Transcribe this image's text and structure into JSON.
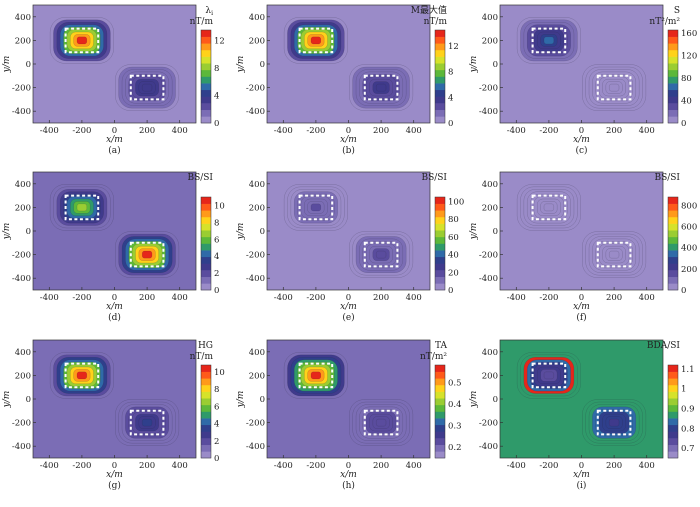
{
  "chart_data": [
    {
      "type": "heatmap",
      "panel_label": "(a)",
      "xlabel": "x/m",
      "ylabel": "y/m",
      "xlim": [
        -500,
        500
      ],
      "ylim": [
        -500,
        500
      ],
      "xticks": [
        "-400",
        "-200",
        "0",
        "200",
        "400"
      ],
      "yticks": [
        "400",
        "200",
        "0",
        "-200",
        "-400"
      ],
      "colorbar": {
        "title": "λ",
        "title_sub": "i",
        "unit": "nT/m",
        "ticks": [
          12,
          8,
          4,
          0
        ],
        "vmin": 0,
        "vmax": 13.5
      },
      "anomalies": [
        {
          "x": [
            -300,
            -100
          ],
          "y": [
            100,
            300
          ],
          "peak": 13.0
        },
        {
          "x": [
            100,
            300
          ],
          "y": [
            -300,
            -100
          ],
          "peak": 3.6
        }
      ],
      "background": 0.8,
      "marker": "rect"
    },
    {
      "type": "heatmap",
      "panel_label": "(b)",
      "xlabel": "x/m",
      "ylabel": "y/m",
      "xlim": [
        -500,
        500
      ],
      "ylim": [
        -500,
        500
      ],
      "xticks": [
        "-400",
        "-200",
        "0",
        "200",
        "400"
      ],
      "yticks": [
        "400",
        "200",
        "0",
        "-200",
        "-400"
      ],
      "colorbar": {
        "title": "M最大值",
        "unit": "nT/m",
        "ticks": [
          12,
          8,
          4,
          0
        ],
        "vmin": 0,
        "vmax": 14.5
      },
      "anomalies": [
        {
          "x": [
            -300,
            -100
          ],
          "y": [
            100,
            300
          ],
          "peak": 14.0
        },
        {
          "x": [
            100,
            300
          ],
          "y": [
            -300,
            -100
          ],
          "peak": 3.8
        }
      ],
      "background": 0.8,
      "marker": "rect"
    },
    {
      "type": "heatmap",
      "panel_label": "(c)",
      "xlabel": "x/m",
      "ylabel": "y/m",
      "xlim": [
        -500,
        500
      ],
      "ylim": [
        -500,
        500
      ],
      "xticks": [
        "-400",
        "-200",
        "0",
        "200",
        "400"
      ],
      "yticks": [
        "400",
        "200",
        "0",
        "-200",
        "-400"
      ],
      "colorbar": {
        "title": "S",
        "unit": "nT²/m²",
        "ticks": [
          160,
          120,
          80,
          40,
          0
        ],
        "vmin": 0,
        "vmax": 165
      },
      "anomalies": [
        {
          "x": [
            -300,
            -100
          ],
          "y": [
            100,
            300
          ],
          "peak": 60
        },
        {
          "x": [
            100,
            300
          ],
          "y": [
            -300,
            -100
          ],
          "peak": 8
        }
      ],
      "background": 6,
      "marker": "rect"
    },
    {
      "type": "heatmap",
      "panel_label": "(d)",
      "xlabel": "x/m",
      "ylabel": "y/m",
      "xlim": [
        -500,
        500
      ],
      "ylim": [
        -500,
        500
      ],
      "xticks": [
        "-400",
        "-200",
        "0",
        "200",
        "400"
      ],
      "yticks": [
        "400",
        "200",
        "0",
        "-200",
        "-400"
      ],
      "colorbar": {
        "title": "BS/SI",
        "unit": "",
        "ticks": [
          10,
          8,
          6,
          4,
          2,
          0
        ],
        "vmin": 0,
        "vmax": 11
      },
      "anomalies": [
        {
          "x": [
            -300,
            -100
          ],
          "y": [
            100,
            300
          ],
          "peak": 6.5
        },
        {
          "x": [
            100,
            300
          ],
          "y": [
            -300,
            -100
          ],
          "peak": 10.5
        }
      ],
      "background": 0.8,
      "marker": "rect"
    },
    {
      "type": "heatmap",
      "panel_label": "(e)",
      "xlabel": "x/m",
      "ylabel": "y/m",
      "xlim": [
        -500,
        500
      ],
      "ylim": [
        -500,
        500
      ],
      "xticks": [
        "-400",
        "-200",
        "0",
        "200",
        "400"
      ],
      "yticks": [
        "400",
        "200",
        "0",
        "-200",
        "-400"
      ],
      "colorbar": {
        "title": "BS/SI",
        "unit": "",
        "ticks": [
          100,
          80,
          60,
          40,
          20,
          0
        ],
        "vmin": 0,
        "vmax": 105
      },
      "anomalies": [
        {
          "x": [
            -300,
            -100
          ],
          "y": [
            100,
            300
          ],
          "peak": 15
        },
        {
          "x": [
            100,
            300
          ],
          "y": [
            -300,
            -100
          ],
          "peak": 18
        }
      ],
      "background": 4,
      "marker": "rect"
    },
    {
      "type": "heatmap",
      "panel_label": "(f)",
      "xlabel": "x/m",
      "ylabel": "y/m",
      "xlim": [
        -500,
        500
      ],
      "ylim": [
        -500,
        500
      ],
      "xticks": [
        "-400",
        "-200",
        "0",
        "200",
        "400"
      ],
      "yticks": [
        "400",
        "200",
        "0",
        "-200",
        "-400"
      ],
      "colorbar": {
        "title": "BS/SI",
        "unit": "",
        "ticks": [
          800,
          600,
          400,
          200,
          0
        ],
        "vmin": 0,
        "vmax": 880
      },
      "anomalies": [
        {
          "x": [
            -300,
            -100
          ],
          "y": [
            100,
            300
          ],
          "peak": 60
        },
        {
          "x": [
            100,
            300
          ],
          "y": [
            -300,
            -100
          ],
          "peak": 60
        }
      ],
      "background": 30,
      "marker": "rect"
    },
    {
      "type": "heatmap",
      "panel_label": "(g)",
      "xlabel": "x/m",
      "ylabel": "y/m",
      "xlim": [
        -500,
        500
      ],
      "ylim": [
        -500,
        500
      ],
      "xticks": [
        "-400",
        "-200",
        "0",
        "200",
        "400"
      ],
      "yticks": [
        "400",
        "200",
        "0",
        "-200",
        "-400"
      ],
      "colorbar": {
        "title": "HG",
        "unit": "nT/m",
        "ticks": [
          10,
          8,
          6,
          4,
          2,
          0
        ],
        "vmin": 0,
        "vmax": 10.8
      },
      "anomalies": [
        {
          "x": [
            -300,
            -100
          ],
          "y": [
            100,
            300
          ],
          "peak": 10.2
        },
        {
          "x": [
            100,
            300
          ],
          "y": [
            -300,
            -100
          ],
          "peak": 3.2
        }
      ],
      "background": 0.8,
      "marker": "rect"
    },
    {
      "type": "heatmap",
      "panel_label": "(h)",
      "xlabel": "x/m",
      "ylabel": "y/m",
      "xlim": [
        -500,
        500
      ],
      "ylim": [
        -500,
        500
      ],
      "xticks": [
        "-400",
        "-200",
        "0",
        "200",
        "400"
      ],
      "yticks": [
        "400",
        "200",
        "0",
        "-200",
        "-400"
      ],
      "colorbar": {
        "title": "TA",
        "unit": "nT/m²",
        "ticks": [
          0.5,
          0.4,
          0.3,
          0.2
        ],
        "vmin": 0.15,
        "vmax": 0.58
      },
      "anomalies": [
        {
          "x": [
            -300,
            -100
          ],
          "y": [
            100,
            300
          ],
          "peak": 0.56
        },
        {
          "x": [
            100,
            300
          ],
          "y": [
            -300,
            -100
          ],
          "peak": 0.22
        }
      ],
      "background": 0.2,
      "marker": "rect"
    },
    {
      "type": "heatmap",
      "panel_label": "(i)",
      "xlabel": "x/m",
      "ylabel": "y/m",
      "xlim": [
        -500,
        500
      ],
      "ylim": [
        -500,
        500
      ],
      "xticks": [
        "-400",
        "-200",
        "0",
        "200",
        "400"
      ],
      "yticks": [
        "400",
        "200",
        "0",
        "-200",
        "-400"
      ],
      "colorbar": {
        "title": "BDA/SI",
        "unit": "",
        "ticks": [
          1.1,
          1.0,
          0.9,
          0.8,
          0.7
        ],
        "vmin": 0.65,
        "vmax": 1.12
      },
      "anomalies": [
        {
          "x": [
            -300,
            -100
          ],
          "y": [
            100,
            300
          ],
          "peak": 0.72,
          "ring": 1.1
        },
        {
          "x": [
            100,
            300
          ],
          "y": [
            -300,
            -100
          ],
          "peak": 0.78
        }
      ],
      "background": 0.88,
      "marker": "rect"
    }
  ],
  "colormap": [
    "#9a8bc8",
    "#7b6db5",
    "#5a4c9e",
    "#3f3a8c",
    "#2f3f8c",
    "#2f6aa8",
    "#2f9a6a",
    "#5cb83a",
    "#9acd32",
    "#d6e22a",
    "#ffd21a",
    "#ff9a1a",
    "#ff5a1a",
    "#e6261a"
  ]
}
